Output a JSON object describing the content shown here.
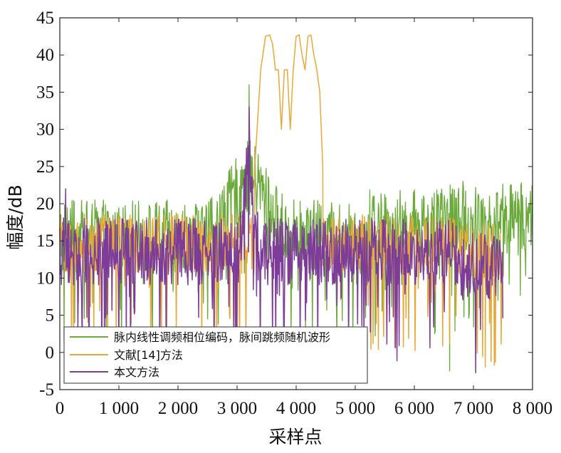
{
  "chart_data": {
    "type": "line",
    "xlabel": "采样点",
    "ylabel": "幅度/dB",
    "xlim": [
      0,
      8000
    ],
    "ylim": [
      -5,
      45
    ],
    "xticks": [
      0,
      1000,
      2000,
      3000,
      4000,
      5000,
      6000,
      7000,
      8000
    ],
    "xtick_labels": [
      "0",
      "1 000",
      "2 000",
      "3 000",
      "4 000",
      "5 000",
      "6 000",
      "7 000",
      "8 000"
    ],
    "yticks": [
      -5,
      0,
      5,
      10,
      15,
      20,
      25,
      30,
      35,
      40,
      45
    ],
    "ytick_labels": [
      "-5",
      "0",
      "5",
      "10",
      "15",
      "20",
      "25",
      "30",
      "35",
      "40",
      "45"
    ],
    "grid": false,
    "legend_position": "bottom-left",
    "series": [
      {
        "name": "脉内线性调频相位编码，脉间跳频随机波形",
        "color": "#6aaa3a",
        "x_range": [
          0,
          8000
        ],
        "baseline_db": 16,
        "noise_amplitude_db": 5,
        "peak": {
          "x": 3200,
          "y": 36
        },
        "min": {
          "x": 6600,
          "y": -2.5
        },
        "hump": {
          "center": 3200,
          "width": 400,
          "height_db": 8
        }
      },
      {
        "name": "文献[14]方法",
        "color": "#e8a838",
        "x_range": [
          0,
          7500
        ],
        "baseline_db": 15,
        "noise_amplitude_db": 4,
        "min": {
          "x": 7200,
          "y": -2
        },
        "main_lobe_envelope": [
          [
            3300,
            25
          ],
          [
            3400,
            38
          ],
          [
            3480,
            42.5
          ],
          [
            3550,
            42.7
          ],
          [
            3600,
            41.5
          ],
          [
            3650,
            38
          ],
          [
            3700,
            38
          ],
          [
            3750,
            30
          ],
          [
            3800,
            38
          ],
          [
            3850,
            38
          ],
          [
            3900,
            30
          ],
          [
            3950,
            38
          ],
          [
            4000,
            42.5
          ],
          [
            4050,
            42.7
          ],
          [
            4100,
            40
          ],
          [
            4150,
            38
          ],
          [
            4200,
            42.5
          ],
          [
            4250,
            42.7
          ],
          [
            4300,
            40
          ],
          [
            4350,
            38
          ],
          [
            4400,
            35
          ],
          [
            4450,
            25
          ]
        ]
      },
      {
        "name": "本文方法",
        "color": "#7d3c98",
        "x_range": [
          0,
          7500
        ],
        "baseline_db": 14,
        "noise_amplitude_db": 4.5,
        "peak": {
          "x": 3200,
          "y": 33
        },
        "side_peak": {
          "x": 100,
          "y": 22
        }
      }
    ]
  }
}
